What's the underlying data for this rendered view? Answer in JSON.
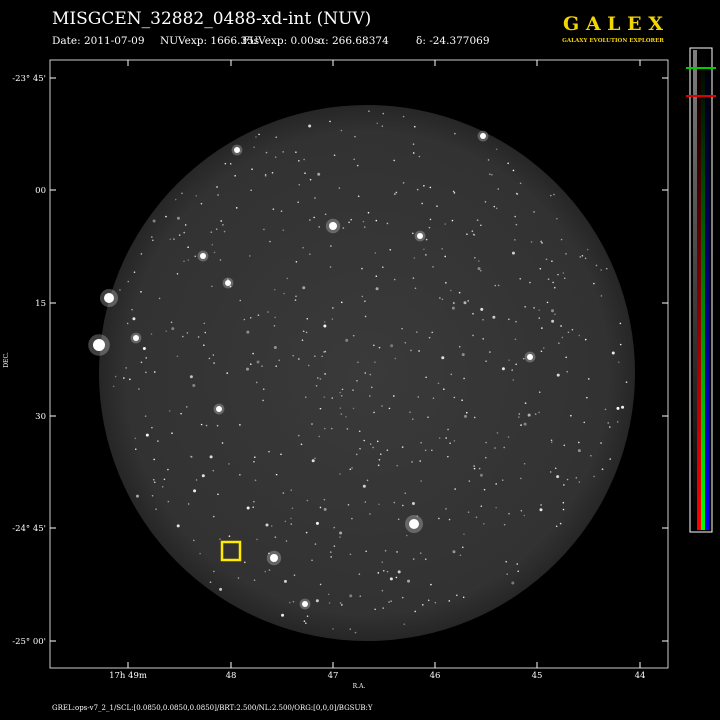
{
  "header": {
    "title": "MISGCEN_32882_0488-xd-int (NUV)",
    "info": [
      "Date: 2011-07-09",
      "NUVexp: 1666.35s",
      "FUVexp: 0.00s",
      "α: 266.68374",
      "δ: -24.377069"
    ]
  },
  "logo": {
    "name": "G A L E X",
    "subtitle": "GALAXY EVOLUTION EXPLORER"
  },
  "axes": {
    "y_label": "DEC.",
    "x_label": "R.A.",
    "y_ticks": [
      "-23° 45'",
      "00",
      "15",
      "30",
      "-24° 45'",
      "-25° 00'"
    ],
    "x_ticks": [
      "17h 49m",
      "48",
      "47",
      "46",
      "45",
      "44"
    ]
  },
  "footer": "GREL:ops-v7_2_1/SCL:[0.0850,0.0850,0.0850]/BRT:2.500/NL:2.500/ORG:[0,0,0]/BGSUB:Y"
}
